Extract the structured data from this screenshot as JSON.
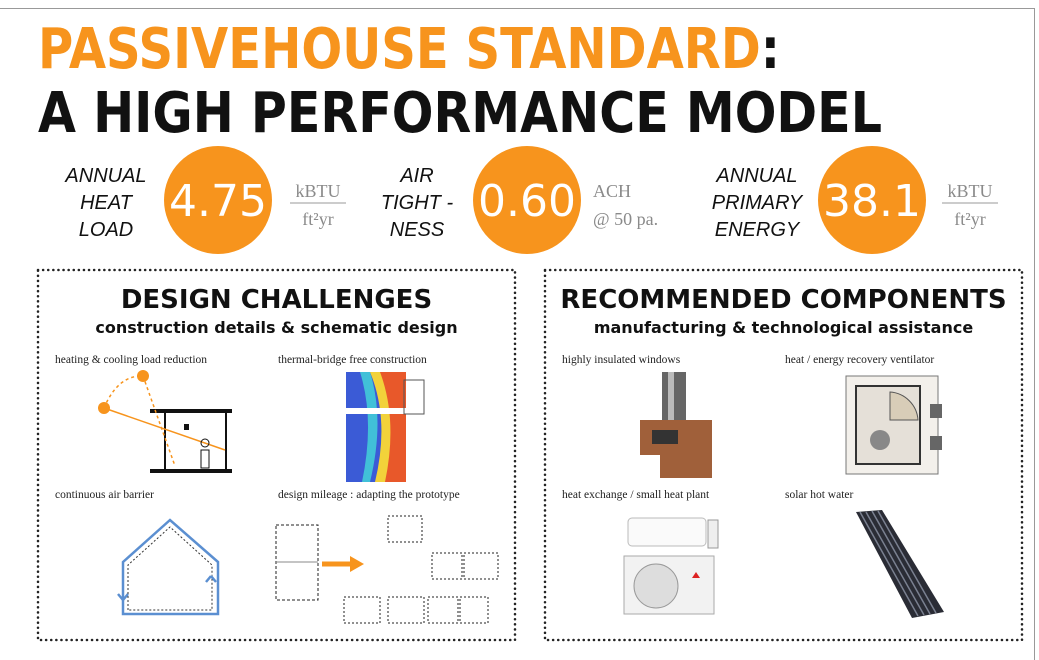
{
  "header": {
    "title_line1": "PASSIVEHOUSE STANDARD",
    "title_colon": ":",
    "title_line2": "A HIGH PERFORMANCE MODEL"
  },
  "metrics": [
    {
      "label": [
        "ANNUAL",
        "HEAT",
        "LOAD"
      ],
      "value": "4.75",
      "unit_top": "kBTU",
      "unit_bottom": "ft²yr"
    },
    {
      "label": [
        "AIR",
        "TIGHT -",
        "NESS"
      ],
      "value": "0.60",
      "unit_top": "ACH",
      "unit_bottom": "@ 50 pa."
    },
    {
      "label": [
        "ANNUAL",
        "PRIMARY",
        "ENERGY"
      ],
      "value": "38.1",
      "unit_top": "kBTU",
      "unit_bottom": "ft²yr"
    }
  ],
  "panels": [
    {
      "title": "DESIGN CHALLENGES",
      "subtitle": "construction details & schematic design",
      "items": [
        "heating & cooling load reduction",
        "thermal-bridge free construction",
        "continuous air barrier",
        "design mileage : adapting the prototype"
      ]
    },
    {
      "title": "RECOMMENDED COMPONENTS",
      "subtitle": "manufacturing & technological assistance",
      "items": [
        "highly insulated windows",
        "heat / energy recovery ventilator",
        "heat exchange / small heat plant",
        "solar hot water"
      ]
    }
  ]
}
